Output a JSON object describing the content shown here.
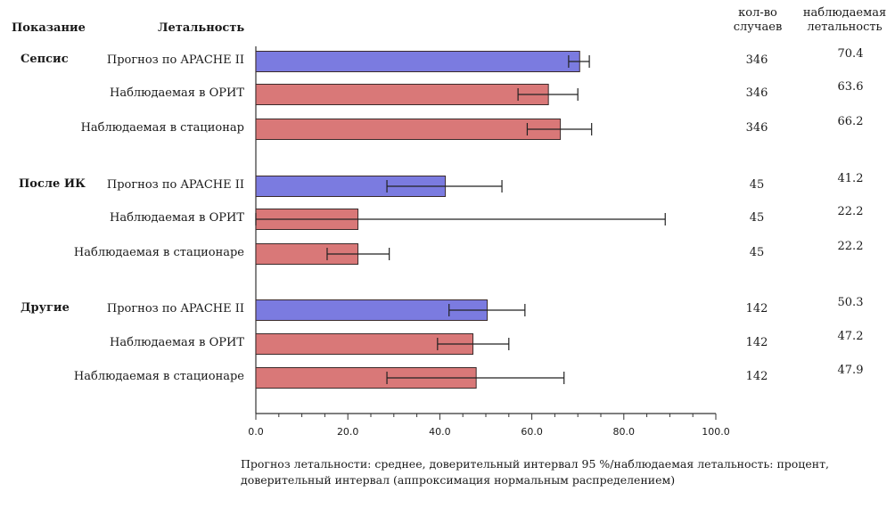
{
  "headers": {
    "indication": "Показание",
    "mortality": "Летальность",
    "cases": "кол-во\nслучаев",
    "observed": "наблюдаемая\nлетальность"
  },
  "chart_data": {
    "type": "bar",
    "orientation": "horizontal",
    "xlim": [
      0,
      100
    ],
    "xticks": [
      "0.0",
      "20.0",
      "40.0",
      "60.0",
      "80.0",
      "100.0"
    ],
    "colors": {
      "predicted": "#7b7be0",
      "observed": "#d97878"
    },
    "groups": [
      {
        "name": "Сепсис",
        "rows": [
          {
            "label": "Прогноз по APACHE II",
            "kind": "predicted",
            "value": 70.4,
            "ci": [
              68.0,
              72.5
            ],
            "cases": "346",
            "observed_text": "70.4"
          },
          {
            "label": "Наблюдаемая в ОРИТ",
            "kind": "observed",
            "value": 63.6,
            "ci": [
              57.0,
              70.0
            ],
            "cases": "346",
            "observed_text": "63.6"
          },
          {
            "label": "Наблюдаемая в стационар",
            "kind": "observed",
            "value": 66.2,
            "ci": [
              59.0,
              73.0
            ],
            "cases": "346",
            "observed_text": "66.2"
          }
        ]
      },
      {
        "name": "После ИК",
        "rows": [
          {
            "label": "Прогноз по APACHE II",
            "kind": "predicted",
            "value": 41.2,
            "ci": [
              28.5,
              53.5
            ],
            "cases": "45",
            "observed_text": "41.2"
          },
          {
            "label": "Наблюдаемая в ОРИТ",
            "kind": "observed",
            "value": 22.2,
            "ci": [
              0.0,
              89.0
            ],
            "cases": "45",
            "observed_text": "22.2"
          },
          {
            "label": "Наблюдаемая в стационаре",
            "kind": "observed",
            "value": 22.2,
            "ci": [
              15.5,
              29.0
            ],
            "cases": "45",
            "observed_text": "22.2"
          }
        ]
      },
      {
        "name": "Другие",
        "rows": [
          {
            "label": "Прогноз по APACHE II",
            "kind": "predicted",
            "value": 50.3,
            "ci": [
              42.0,
              58.5
            ],
            "cases": "142",
            "observed_text": "50.3"
          },
          {
            "label": "Наблюдаемая в ОРИТ",
            "kind": "observed",
            "value": 47.2,
            "ci": [
              39.5,
              55.0
            ],
            "cases": "142",
            "observed_text": "47.2"
          },
          {
            "label": "Наблюдаемая в стационаре",
            "kind": "observed",
            "value": 47.9,
            "ci": [
              28.5,
              67.0
            ],
            "cases": "142",
            "observed_text": "47.9"
          }
        ]
      }
    ]
  },
  "footnote": "Прогноз летальности: среднее, доверительный интервал 95 %/наблюдаемая летальность: процент, доверительный интервал (аппроксимация нормальным распределением)"
}
